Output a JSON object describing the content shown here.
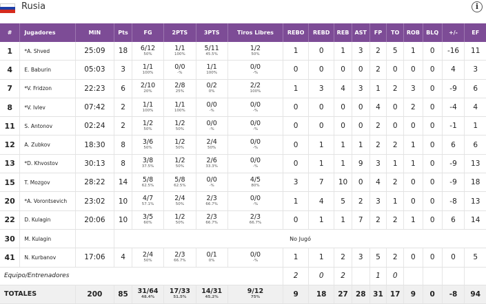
{
  "team": {
    "name": "Rusia",
    "flag_colors": [
      "#ffffff",
      "#1c3fa8",
      "#d52b1e"
    ]
  },
  "columns": [
    "#",
    "Jugadores",
    "MIN",
    "Pts",
    "FG",
    "2PTS",
    "3PTS",
    "Tiros Libres",
    "REBO",
    "REBD",
    "REB",
    "AST",
    "FP",
    "TO",
    "ROB",
    "BLQ",
    "+/-",
    "EF"
  ],
  "players": [
    {
      "num": "1",
      "name": "*A. Shved",
      "min": "25:09",
      "pts": "18",
      "fg": "6/12",
      "fg_pct": "50%",
      "p2": "1/1",
      "p2_pct": "100%",
      "p3": "5/11",
      "p3_pct": "45.5%",
      "ft": "1/2",
      "ft_pct": "50%",
      "rebo": "1",
      "rebd": "0",
      "reb": "1",
      "ast": "3",
      "fp": "2",
      "to": "5",
      "rob": "1",
      "blq": "0",
      "pm": "-16",
      "ef": "11"
    },
    {
      "num": "4",
      "name": "E. Baburin",
      "min": "05:03",
      "pts": "3",
      "fg": "1/1",
      "fg_pct": "100%",
      "p2": "0/0",
      "p2_pct": "-%",
      "p3": "1/1",
      "p3_pct": "100%",
      "ft": "0/0",
      "ft_pct": "-%",
      "rebo": "0",
      "rebd": "0",
      "reb": "0",
      "ast": "0",
      "fp": "2",
      "to": "0",
      "rob": "0",
      "blq": "0",
      "pm": "4",
      "ef": "3"
    },
    {
      "num": "7",
      "name": "*V. Fridzon",
      "min": "22:23",
      "pts": "6",
      "fg": "2/10",
      "fg_pct": "20%",
      "p2": "2/8",
      "p2_pct": "25%",
      "p3": "0/2",
      "p3_pct": "0%",
      "ft": "2/2",
      "ft_pct": "100%",
      "rebo": "1",
      "rebd": "3",
      "reb": "4",
      "ast": "3",
      "fp": "1",
      "to": "2",
      "rob": "3",
      "blq": "0",
      "pm": "-9",
      "ef": "6"
    },
    {
      "num": "8",
      "name": "*V. Ivlev",
      "min": "07:42",
      "pts": "2",
      "fg": "1/1",
      "fg_pct": "100%",
      "p2": "1/1",
      "p2_pct": "100%",
      "p3": "0/0",
      "p3_pct": "-%",
      "ft": "0/0",
      "ft_pct": "-%",
      "rebo": "0",
      "rebd": "0",
      "reb": "0",
      "ast": "0",
      "fp": "4",
      "to": "0",
      "rob": "2",
      "blq": "0",
      "pm": "-4",
      "ef": "4"
    },
    {
      "num": "11",
      "name": "S. Antonov",
      "min": "02:24",
      "pts": "2",
      "fg": "1/2",
      "fg_pct": "50%",
      "p2": "1/2",
      "p2_pct": "50%",
      "p3": "0/0",
      "p3_pct": "-%",
      "ft": "0/0",
      "ft_pct": "-%",
      "rebo": "0",
      "rebd": "0",
      "reb": "0",
      "ast": "0",
      "fp": "2",
      "to": "0",
      "rob": "0",
      "blq": "0",
      "pm": "-1",
      "ef": "1"
    },
    {
      "num": "12",
      "name": "A. Zubkov",
      "min": "18:30",
      "pts": "8",
      "fg": "3/6",
      "fg_pct": "50%",
      "p2": "1/2",
      "p2_pct": "50%",
      "p3": "2/4",
      "p3_pct": "50%",
      "ft": "0/0",
      "ft_pct": "-%",
      "rebo": "0",
      "rebd": "1",
      "reb": "1",
      "ast": "1",
      "fp": "2",
      "to": "2",
      "rob": "1",
      "blq": "0",
      "pm": "6",
      "ef": "6"
    },
    {
      "num": "13",
      "name": "*D. Khvostov",
      "min": "30:13",
      "pts": "8",
      "fg": "3/8",
      "fg_pct": "37.5%",
      "p2": "1/2",
      "p2_pct": "50%",
      "p3": "2/6",
      "p3_pct": "33.3%",
      "ft": "0/0",
      "ft_pct": "-%",
      "rebo": "0",
      "rebd": "1",
      "reb": "1",
      "ast": "9",
      "fp": "3",
      "to": "1",
      "rob": "1",
      "blq": "0",
      "pm": "-9",
      "ef": "13"
    },
    {
      "num": "15",
      "name": "T. Mozgov",
      "min": "28:22",
      "pts": "14",
      "fg": "5/8",
      "fg_pct": "62.5%",
      "p2": "5/8",
      "p2_pct": "62.5%",
      "p3": "0/0",
      "p3_pct": "-%",
      "ft": "4/5",
      "ft_pct": "80%",
      "rebo": "3",
      "rebd": "7",
      "reb": "10",
      "ast": "0",
      "fp": "4",
      "to": "2",
      "rob": "0",
      "blq": "0",
      "pm": "-9",
      "ef": "18"
    },
    {
      "num": "20",
      "name": "*A. Vorontsevich",
      "min": "23:02",
      "pts": "10",
      "fg": "4/7",
      "fg_pct": "57.1%",
      "p2": "2/4",
      "p2_pct": "50%",
      "p3": "2/3",
      "p3_pct": "66.7%",
      "ft": "0/0",
      "ft_pct": "-%",
      "rebo": "1",
      "rebd": "4",
      "reb": "5",
      "ast": "2",
      "fp": "3",
      "to": "1",
      "rob": "0",
      "blq": "0",
      "pm": "-8",
      "ef": "13"
    },
    {
      "num": "22",
      "name": "D. Kulagin",
      "min": "20:06",
      "pts": "10",
      "fg": "3/5",
      "fg_pct": "60%",
      "p2": "1/2",
      "p2_pct": "50%",
      "p3": "2/3",
      "p3_pct": "66.7%",
      "ft": "2/3",
      "ft_pct": "66.7%",
      "rebo": "0",
      "rebd": "1",
      "reb": "1",
      "ast": "7",
      "fp": "2",
      "to": "2",
      "rob": "1",
      "blq": "0",
      "pm": "6",
      "ef": "14"
    }
  ],
  "dnp": {
    "num": "30",
    "name": "M. Kulagin",
    "text": "No Jugó"
  },
  "last_player": {
    "num": "41",
    "name": "N. Kurbanov",
    "min": "17:06",
    "pts": "4",
    "fg": "2/4",
    "fg_pct": "50%",
    "p2": "2/3",
    "p2_pct": "66.7%",
    "p3": "0/1",
    "p3_pct": "0%",
    "ft": "0/0",
    "ft_pct": "-%",
    "rebo": "1",
    "rebd": "1",
    "reb": "2",
    "ast": "3",
    "fp": "5",
    "to": "2",
    "rob": "0",
    "blq": "0",
    "pm": "0",
    "ef": "5"
  },
  "team_row": {
    "label": "Equipo/Entrenadores",
    "rebo": "2",
    "rebd": "0",
    "reb": "2",
    "fp": "1",
    "to": "0"
  },
  "totals": {
    "label": "TOTALES",
    "min": "200",
    "pts": "85",
    "fg": "31/64",
    "fg_pct": "48.4%",
    "p2": "17/33",
    "p2_pct": "51.5%",
    "p3": "14/31",
    "p3_pct": "45.2%",
    "ft": "9/12",
    "ft_pct": "75%",
    "rebo": "9",
    "rebd": "18",
    "reb": "27",
    "ast": "28",
    "fp": "31",
    "to": "17",
    "rob": "9",
    "blq": "0",
    "pm": "-8",
    "ef": "94"
  }
}
